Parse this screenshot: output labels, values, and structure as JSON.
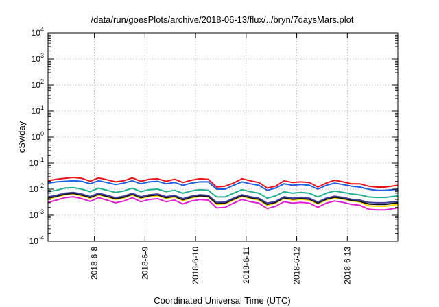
{
  "chart_data": {
    "type": "line",
    "title": "/data/run/goesPlots/archive/2018-06-13/flux/../bryn/7daysMars.plot",
    "xlabel": "Coordinated Universal Time (UTC)",
    "ylabel": "cSv/day",
    "y_scale": "log",
    "ylim": [
      0.0001,
      10000
    ],
    "y_ticks": [
      {
        "value": 0.0001,
        "base": "10",
        "exp": "-4"
      },
      {
        "value": 0.001,
        "base": "10",
        "exp": "-3"
      },
      {
        "value": 0.01,
        "base": "10",
        "exp": "-2"
      },
      {
        "value": 0.1,
        "base": "10",
        "exp": "-1"
      },
      {
        "value": 1,
        "base": "10",
        "exp": "0"
      },
      {
        "value": 10,
        "base": "10",
        "exp": "1"
      },
      {
        "value": 100,
        "base": "10",
        "exp": "2"
      },
      {
        "value": 1000,
        "base": "10",
        "exp": "3"
      },
      {
        "value": 10000,
        "base": "10",
        "exp": "4"
      }
    ],
    "xlim": [
      "2018-06-07 02:00",
      "2018-06-13 23:59"
    ],
    "x_ticks": [
      "2018-6-8",
      "2018-6-9",
      "2018-6-10",
      "2018-6-11",
      "2018-6-12",
      "2018-6-13"
    ],
    "grid": true,
    "legend": "none",
    "x": [
      "06-07 02:00",
      "06-07 06:00",
      "06-07 10:00",
      "06-07 14:00",
      "06-07 18:00",
      "06-07 22:00",
      "06-08 02:00",
      "06-08 06:00",
      "06-08 10:00",
      "06-08 14:00",
      "06-08 18:00",
      "06-08 22:00",
      "06-09 02:00",
      "06-09 06:00",
      "06-09 10:00",
      "06-09 14:00",
      "06-09 18:00",
      "06-09 22:00",
      "06-10 02:00",
      "06-10 06:00",
      "06-10 10:00",
      "06-10 14:00",
      "06-10 18:00",
      "06-10 22:00",
      "06-11 02:00",
      "06-11 06:00",
      "06-11 10:00",
      "06-11 14:00",
      "06-11 18:00",
      "06-11 22:00",
      "06-12 02:00",
      "06-12 06:00",
      "06-12 10:00",
      "06-12 14:00",
      "06-12 18:00",
      "06-12 22:00",
      "06-13 02:00",
      "06-13 06:00",
      "06-13 10:00",
      "06-13 14:00",
      "06-13 18:00",
      "06-13 23:59"
    ],
    "series": [
      {
        "color": "#e8141c",
        "values": [
          0.021,
          0.024,
          0.026,
          0.028,
          0.026,
          0.02,
          0.027,
          0.023,
          0.019,
          0.021,
          0.027,
          0.02,
          0.024,
          0.025,
          0.02,
          0.024,
          0.018,
          0.022,
          0.025,
          0.024,
          0.012,
          0.013,
          0.017,
          0.025,
          0.021,
          0.018,
          0.011,
          0.013,
          0.021,
          0.018,
          0.019,
          0.018,
          0.012,
          0.017,
          0.022,
          0.019,
          0.016,
          0.016,
          0.013,
          0.012,
          0.012,
          0.014
        ]
      },
      {
        "color": "#2060e0",
        "values": [
          0.017,
          0.019,
          0.02,
          0.021,
          0.02,
          0.016,
          0.021,
          0.018,
          0.015,
          0.017,
          0.021,
          0.016,
          0.019,
          0.02,
          0.016,
          0.018,
          0.014,
          0.017,
          0.019,
          0.019,
          0.01,
          0.01,
          0.014,
          0.019,
          0.016,
          0.014,
          0.009,
          0.011,
          0.016,
          0.014,
          0.015,
          0.014,
          0.01,
          0.014,
          0.017,
          0.015,
          0.013,
          0.012,
          0.01,
          0.009,
          0.009,
          0.01
        ]
      },
      {
        "color": "#20b090",
        "values": [
          0.008,
          0.009,
          0.011,
          0.0115,
          0.01,
          0.008,
          0.011,
          0.009,
          0.0075,
          0.0085,
          0.011,
          0.008,
          0.0095,
          0.01,
          0.008,
          0.009,
          0.007,
          0.0085,
          0.0095,
          0.009,
          0.005,
          0.005,
          0.007,
          0.0095,
          0.008,
          0.007,
          0.0045,
          0.0055,
          0.008,
          0.007,
          0.0075,
          0.007,
          0.005,
          0.007,
          0.0085,
          0.0075,
          0.0065,
          0.006,
          0.005,
          0.0048,
          0.0048,
          0.0055
        ]
      },
      {
        "color": "#ffd800",
        "values": [
          0.0042,
          0.005,
          0.006,
          0.0065,
          0.0055,
          0.0045,
          0.006,
          0.005,
          0.004,
          0.0046,
          0.006,
          0.0044,
          0.0052,
          0.0056,
          0.0044,
          0.005,
          0.0036,
          0.0046,
          0.0052,
          0.005,
          0.0026,
          0.0027,
          0.0038,
          0.0052,
          0.0044,
          0.0038,
          0.0024,
          0.0029,
          0.0044,
          0.0038,
          0.0041,
          0.0038,
          0.0027,
          0.0038,
          0.0046,
          0.0041,
          0.0035,
          0.0032,
          0.0023,
          0.0022,
          0.0022,
          0.0026
        ]
      },
      {
        "color": "#40409a",
        "values": [
          0.005,
          0.0058,
          0.007,
          0.0075,
          0.0065,
          0.0052,
          0.007,
          0.0058,
          0.0047,
          0.0054,
          0.007,
          0.0051,
          0.0061,
          0.0065,
          0.0051,
          0.0058,
          0.0043,
          0.0054,
          0.0061,
          0.0058,
          0.0031,
          0.0032,
          0.0045,
          0.0061,
          0.0051,
          0.0045,
          0.0029,
          0.0034,
          0.0051,
          0.0045,
          0.0048,
          0.0045,
          0.0032,
          0.0045,
          0.0054,
          0.0048,
          0.0041,
          0.0038,
          0.0031,
          0.003,
          0.003,
          0.0034
        ]
      },
      {
        "color": "#111111",
        "values": [
          0.0045,
          0.0053,
          0.0064,
          0.0069,
          0.0059,
          0.0048,
          0.0064,
          0.0053,
          0.0043,
          0.0049,
          0.0064,
          0.0047,
          0.0056,
          0.006,
          0.0047,
          0.0053,
          0.0039,
          0.0049,
          0.0056,
          0.0053,
          0.0028,
          0.0029,
          0.0041,
          0.0056,
          0.0047,
          0.0041,
          0.0026,
          0.0031,
          0.0047,
          0.0041,
          0.0044,
          0.0041,
          0.0029,
          0.0041,
          0.0049,
          0.0044,
          0.0037,
          0.0034,
          0.0027,
          0.0026,
          0.0026,
          0.003
        ]
      },
      {
        "color": "#e020d0",
        "values": [
          0.0031,
          0.0038,
          0.0047,
          0.0051,
          0.0043,
          0.0034,
          0.0047,
          0.0038,
          0.003,
          0.0035,
          0.0047,
          0.0033,
          0.004,
          0.0043,
          0.0033,
          0.0038,
          0.0027,
          0.0035,
          0.004,
          0.0038,
          0.0019,
          0.002,
          0.0029,
          0.004,
          0.0033,
          0.0029,
          0.0018,
          0.0022,
          0.0033,
          0.0029,
          0.0031,
          0.0029,
          0.002,
          0.0029,
          0.0035,
          0.0031,
          0.0026,
          0.0024,
          0.0017,
          0.0016,
          0.0016,
          0.0019
        ]
      }
    ]
  }
}
